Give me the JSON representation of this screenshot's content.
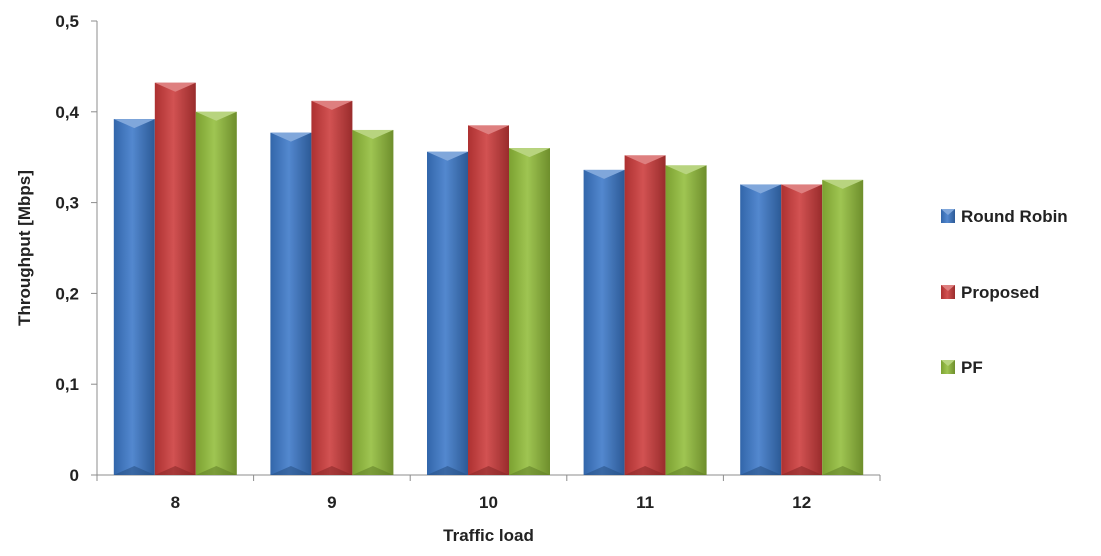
{
  "chart_data": {
    "type": "bar",
    "title": "",
    "xlabel": "Traffic load",
    "ylabel": "Throughput [Mbps]",
    "categories": [
      "8",
      "9",
      "10",
      "11",
      "12"
    ],
    "ylim": [
      0,
      0.5
    ],
    "yticks": [
      "0",
      "0,1",
      "0,2",
      "0,3",
      "0,4",
      "0,5"
    ],
    "ytick_values": [
      0,
      0.1,
      0.2,
      0.3,
      0.4,
      0.5
    ],
    "grid": false,
    "legend_position": "right",
    "series": [
      {
        "name": "Round Robin",
        "values": [
          0.392,
          0.377,
          0.356,
          0.336,
          0.32
        ],
        "color": "#3b78c8"
      },
      {
        "name": "Proposed",
        "values": [
          0.432,
          0.412,
          0.385,
          0.352,
          0.32
        ],
        "color": "#cc3a3a"
      },
      {
        "name": "PF",
        "values": [
          0.4,
          0.38,
          0.36,
          0.341,
          0.325
        ],
        "color": "#92bd3a"
      }
    ]
  }
}
